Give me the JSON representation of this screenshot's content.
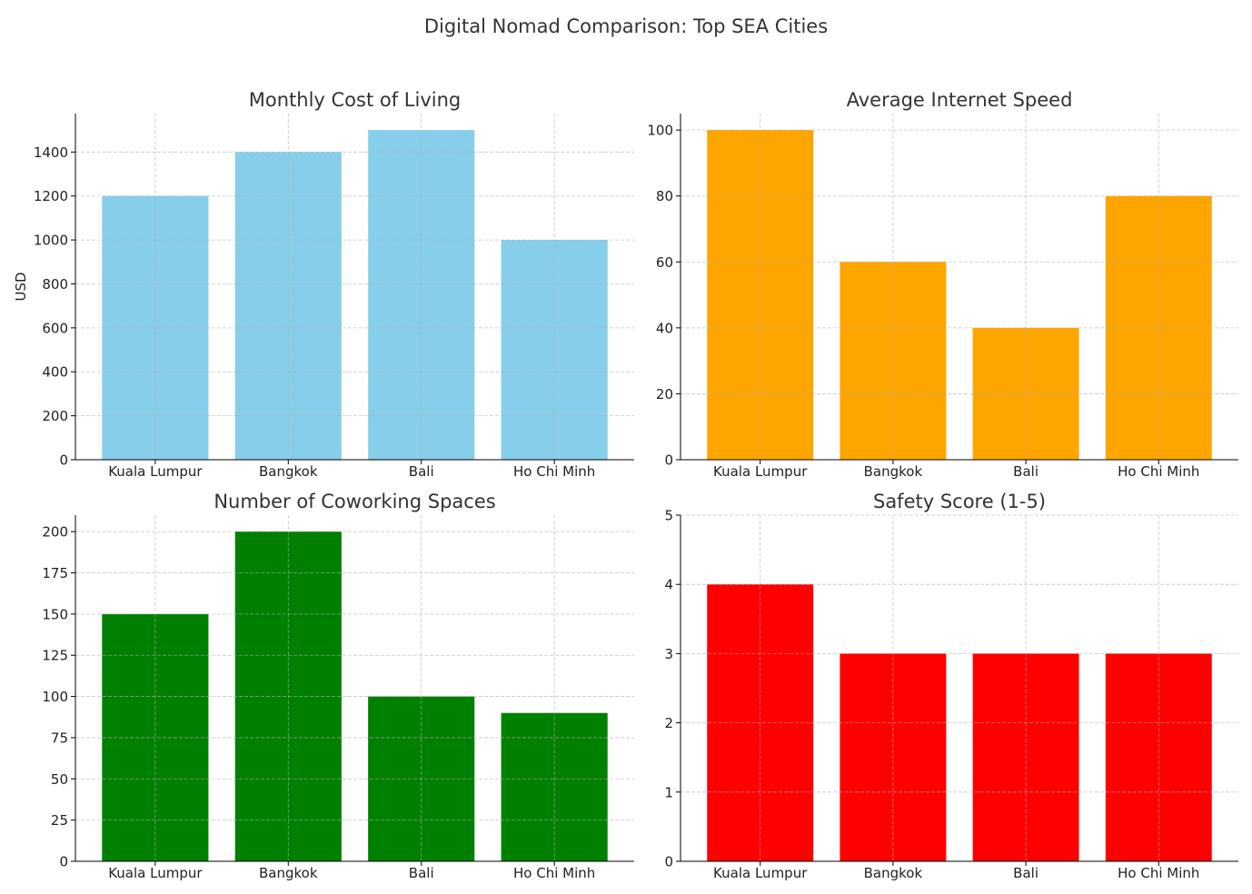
{
  "figure": {
    "title": "Digital Nomad Comparison: Top SEA Cities"
  },
  "chart_data": [
    {
      "type": "bar",
      "title": "Monthly Cost of Living",
      "xlabel": "",
      "ylabel": "USD",
      "categories": [
        "Kuala Lumpur",
        "Bangkok",
        "Bali",
        "Ho Chi Minh"
      ],
      "values": [
        1200,
        1400,
        1500,
        1000
      ],
      "color": "#87ceeb",
      "ylim": [
        0,
        1575
      ],
      "yticks": [
        0,
        200,
        400,
        600,
        800,
        1000,
        1200,
        1400
      ],
      "grid": true,
      "grid_style": "dashed",
      "legend": "none"
    },
    {
      "type": "bar",
      "title": "Average Internet Speed",
      "xlabel": "",
      "ylabel": "",
      "categories": [
        "Kuala Lumpur",
        "Bangkok",
        "Bali",
        "Ho Chi Minh"
      ],
      "values": [
        100,
        60,
        40,
        80
      ],
      "color": "#ffa500",
      "ylim": [
        0,
        105
      ],
      "yticks": [
        0,
        20,
        40,
        60,
        80,
        100
      ],
      "grid": true,
      "grid_style": "dashed",
      "legend": "none"
    },
    {
      "type": "bar",
      "title": "Number of Coworking Spaces",
      "xlabel": "",
      "ylabel": "",
      "categories": [
        "Kuala Lumpur",
        "Bangkok",
        "Bali",
        "Ho Chi Minh"
      ],
      "values": [
        150,
        200,
        100,
        90
      ],
      "color": "#008000",
      "ylim": [
        0,
        210
      ],
      "yticks": [
        0,
        25,
        50,
        75,
        100,
        125,
        150,
        175,
        200
      ],
      "grid": true,
      "grid_style": "dashed",
      "legend": "none"
    },
    {
      "type": "bar",
      "title": "Safety Score (1-5)",
      "xlabel": "",
      "ylabel": "",
      "categories": [
        "Kuala Lumpur",
        "Bangkok",
        "Bali",
        "Ho Chi Minh"
      ],
      "values": [
        4,
        3,
        3,
        3
      ],
      "color": "#ff0000",
      "ylim": [
        0,
        5
      ],
      "yticks": [
        0,
        1,
        2,
        3,
        4,
        5
      ],
      "grid": true,
      "grid_style": "dashed",
      "legend": "none"
    }
  ]
}
